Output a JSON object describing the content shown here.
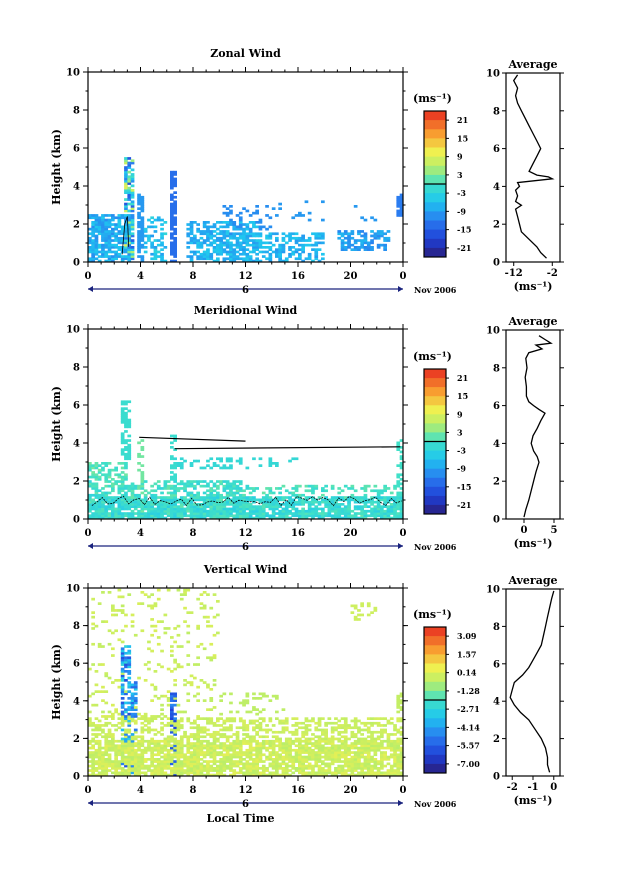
{
  "chart_data": [
    {
      "type": "heatmap",
      "title": "Zonal Wind",
      "ylabel": "Height (km)",
      "x_ticks": [
        "0",
        "4",
        "8",
        "12",
        "16",
        "20",
        "0"
      ],
      "y_ticks": [
        "0",
        "2",
        "4",
        "6",
        "8",
        "10"
      ],
      "xlim": [
        0,
        24
      ],
      "ylim": [
        0,
        10
      ],
      "date_marker": "6",
      "date_label": "Nov 2006",
      "colorbar": {
        "unit": "(ms⁻¹)",
        "ticks": [
          "21",
          "15",
          "9",
          "3",
          "-3",
          "-9",
          "-15",
          "-21"
        ],
        "range": [
          -24,
          24
        ]
      },
      "average": {
        "title": "Average",
        "xlabel": "(ms⁻¹)",
        "x_ticks": [
          "-12",
          "-2"
        ],
        "y_ticks": [
          "0",
          "2",
          "4",
          "6",
          "8",
          "10"
        ],
        "xlim": [
          -14,
          0
        ],
        "ylim": [
          0,
          10
        ],
        "profile": [
          [
            -3.5,
            0.2
          ],
          [
            -5,
            0.5
          ],
          [
            -6,
            0.8
          ],
          [
            -8,
            1.2
          ],
          [
            -10,
            1.6
          ],
          [
            -10.5,
            2.0
          ],
          [
            -11,
            2.4
          ],
          [
            -11.5,
            2.8
          ],
          [
            -10,
            3.0
          ],
          [
            -11.5,
            3.2
          ],
          [
            -11,
            3.5
          ],
          [
            -11.5,
            3.8
          ],
          [
            -10.5,
            4.0
          ],
          [
            -11,
            4.2
          ],
          [
            -2,
            4.4
          ],
          [
            -3,
            4.5
          ],
          [
            -6,
            4.6
          ],
          [
            -8,
            4.8
          ],
          [
            -7,
            5.2
          ],
          [
            -6,
            5.6
          ],
          [
            -5,
            6.0
          ],
          [
            -6,
            6.4
          ],
          [
            -7,
            6.8
          ],
          [
            -8,
            7.2
          ],
          [
            -9,
            7.6
          ],
          [
            -10,
            8.0
          ],
          [
            -11,
            8.4
          ],
          [
            -11.5,
            8.8
          ],
          [
            -11,
            9.2
          ],
          [
            -12,
            9.6
          ],
          [
            -11,
            9.9
          ]
        ]
      }
    },
    {
      "type": "heatmap",
      "title": "Meridional Wind",
      "ylabel": "Height (km)",
      "x_ticks": [
        "0",
        "4",
        "8",
        "12",
        "16",
        "20",
        "0"
      ],
      "y_ticks": [
        "0",
        "2",
        "4",
        "6",
        "8",
        "10"
      ],
      "xlim": [
        0,
        24
      ],
      "ylim": [
        0,
        10
      ],
      "date_marker": "6",
      "date_label": "Nov 2006",
      "colorbar": {
        "unit": "(ms⁻¹)",
        "ticks": [
          "21",
          "15",
          "9",
          "3",
          "-3",
          "-9",
          "-15",
          "-21"
        ],
        "range": [
          -24,
          24
        ]
      },
      "average": {
        "title": "Average",
        "xlabel": "(ms⁻¹)",
        "x_ticks": [
          "0",
          "5"
        ],
        "y_ticks": [
          "0",
          "2",
          "4",
          "6",
          "8",
          "10"
        ],
        "xlim": [
          -3,
          6
        ],
        "ylim": [
          0,
          10
        ],
        "profile": [
          [
            0,
            0.1
          ],
          [
            0.3,
            0.5
          ],
          [
            0.8,
            1.0
          ],
          [
            1.2,
            1.5
          ],
          [
            1.6,
            2.0
          ],
          [
            2.0,
            2.5
          ],
          [
            2.5,
            3.0
          ],
          [
            2.2,
            3.3
          ],
          [
            1.6,
            3.6
          ],
          [
            1.2,
            4.0
          ],
          [
            1.5,
            4.4
          ],
          [
            2.2,
            4.8
          ],
          [
            2.8,
            5.2
          ],
          [
            3.5,
            5.6
          ],
          [
            2.5,
            5.8
          ],
          [
            1.6,
            6.0
          ],
          [
            0.8,
            6.2
          ],
          [
            0.4,
            6.5
          ],
          [
            0.4,
            7.0
          ],
          [
            0.2,
            7.5
          ],
          [
            0.5,
            8.0
          ],
          [
            0.3,
            8.5
          ],
          [
            0.8,
            8.8
          ],
          [
            3.0,
            9.0
          ],
          [
            2.0,
            9.2
          ],
          [
            4.5,
            9.3
          ],
          [
            3.5,
            9.5
          ],
          [
            2.5,
            9.7
          ]
        ]
      }
    },
    {
      "type": "heatmap",
      "title": "Vertical Wind",
      "ylabel": "Height (km)",
      "xlabel": "Local Time",
      "x_ticks": [
        "0",
        "4",
        "8",
        "12",
        "16",
        "20",
        "0"
      ],
      "y_ticks": [
        "0",
        "2",
        "4",
        "6",
        "8",
        "10"
      ],
      "xlim": [
        0,
        24
      ],
      "ylim": [
        0,
        10
      ],
      "date_marker": "6",
      "date_label": "Nov 2006",
      "colorbar": {
        "unit": "(ms⁻¹)",
        "ticks": [
          "3.09",
          "1.57",
          "0.14",
          "-1.28",
          "-2.71",
          "-4.14",
          "-5.57",
          "-7.00"
        ],
        "range": [
          -7.7,
          3.8
        ]
      },
      "average": {
        "title": "Average",
        "xlabel": "(ms⁻¹)",
        "x_ticks": [
          "-2",
          "-1",
          "0"
        ],
        "y_ticks": [
          "0",
          "2",
          "4",
          "6",
          "8",
          "10"
        ],
        "xlim": [
          -2.3,
          0.3
        ],
        "ylim": [
          0,
          10
        ],
        "profile": [
          [
            -0.2,
            0.2
          ],
          [
            -0.3,
            0.6
          ],
          [
            -0.3,
            1.0
          ],
          [
            -0.4,
            1.5
          ],
          [
            -0.6,
            2.0
          ],
          [
            -0.9,
            2.5
          ],
          [
            -1.2,
            3.0
          ],
          [
            -1.6,
            3.4
          ],
          [
            -1.9,
            3.8
          ],
          [
            -2.1,
            4.2
          ],
          [
            -2.0,
            4.6
          ],
          [
            -1.9,
            5.0
          ],
          [
            -1.5,
            5.4
          ],
          [
            -1.2,
            5.8
          ],
          [
            -1.0,
            6.2
          ],
          [
            -0.8,
            6.6
          ],
          [
            -0.6,
            7.0
          ],
          [
            -0.5,
            7.5
          ],
          [
            -0.4,
            8.0
          ],
          [
            -0.3,
            8.5
          ],
          [
            -0.2,
            9.0
          ],
          [
            -0.1,
            9.5
          ],
          [
            0.0,
            9.9
          ]
        ]
      }
    }
  ]
}
